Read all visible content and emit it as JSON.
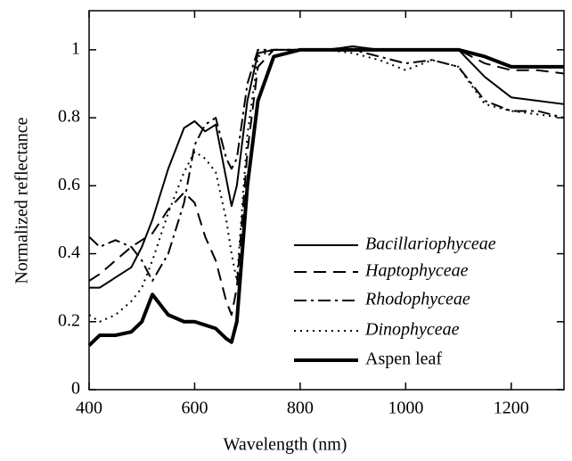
{
  "chart_data": {
    "type": "line",
    "xlabel": "Wavelength (nm)",
    "ylabel": "Normalized reflectance",
    "x": [
      400,
      420,
      450,
      480,
      500,
      520,
      550,
      580,
      600,
      620,
      640,
      660,
      670,
      680,
      700,
      720,
      750,
      800,
      850,
      900,
      950,
      1000,
      1050,
      1100,
      1150,
      1200,
      1250,
      1300
    ],
    "series": [
      {
        "name": "Bacillariophyceae",
        "color": "#000000",
        "dash": "solid",
        "width": 2,
        "italic": true,
        "values": [
          0.3,
          0.3,
          0.33,
          0.36,
          0.42,
          0.5,
          0.65,
          0.77,
          0.79,
          0.76,
          0.78,
          0.62,
          0.54,
          0.6,
          0.85,
          0.99,
          1.0,
          1.0,
          1.0,
          1.01,
          1.0,
          1.0,
          1.0,
          1.0,
          0.92,
          0.86,
          0.85,
          0.84
        ]
      },
      {
        "name": "Haptophyceae",
        "color": "#000000",
        "dash": "dashed",
        "width": 2,
        "italic": true,
        "values": [
          0.32,
          0.34,
          0.38,
          0.42,
          0.44,
          0.46,
          0.53,
          0.58,
          0.55,
          0.45,
          0.38,
          0.26,
          0.22,
          0.3,
          0.7,
          0.95,
          1.0,
          1.0,
          1.0,
          1.01,
          1.0,
          1.0,
          1.0,
          1.0,
          0.96,
          0.94,
          0.94,
          0.93
        ]
      },
      {
        "name": "Rhodophyceae",
        "color": "#000000",
        "dash": "dashdot",
        "width": 2,
        "italic": true,
        "values": [
          0.45,
          0.42,
          0.44,
          0.42,
          0.38,
          0.32,
          0.4,
          0.55,
          0.72,
          0.78,
          0.8,
          0.68,
          0.65,
          0.68,
          0.9,
          1.0,
          1.0,
          1.0,
          1.0,
          1.0,
          0.98,
          0.96,
          0.97,
          0.95,
          0.85,
          0.82,
          0.82,
          0.8
        ]
      },
      {
        "name": "Dinophyceae",
        "color": "#000000",
        "dash": "dotted",
        "width": 2,
        "italic": true,
        "values": [
          0.22,
          0.2,
          0.22,
          0.26,
          0.3,
          0.38,
          0.52,
          0.64,
          0.7,
          0.68,
          0.64,
          0.5,
          0.4,
          0.32,
          0.75,
          0.98,
          1.0,
          1.0,
          1.0,
          0.99,
          0.97,
          0.94,
          0.97,
          0.95,
          0.84,
          0.82,
          0.81,
          0.8
        ]
      },
      {
        "name": "Aspen leaf",
        "color": "#000000",
        "dash": "solid",
        "width": 4,
        "italic": false,
        "values": [
          0.13,
          0.16,
          0.16,
          0.17,
          0.2,
          0.28,
          0.22,
          0.2,
          0.2,
          0.19,
          0.18,
          0.15,
          0.14,
          0.2,
          0.6,
          0.85,
          0.98,
          1.0,
          1.0,
          1.0,
          1.0,
          1.0,
          1.0,
          1.0,
          0.98,
          0.95,
          0.95,
          0.95
        ]
      }
    ],
    "xlim": [
      400,
      1300
    ],
    "xticks": [
      400,
      600,
      800,
      1000,
      1200
    ],
    "ylim": [
      0,
      1.115
    ],
    "yticks": [
      0,
      0.2,
      0.4,
      0.6,
      0.8,
      1
    ],
    "grid": false
  }
}
